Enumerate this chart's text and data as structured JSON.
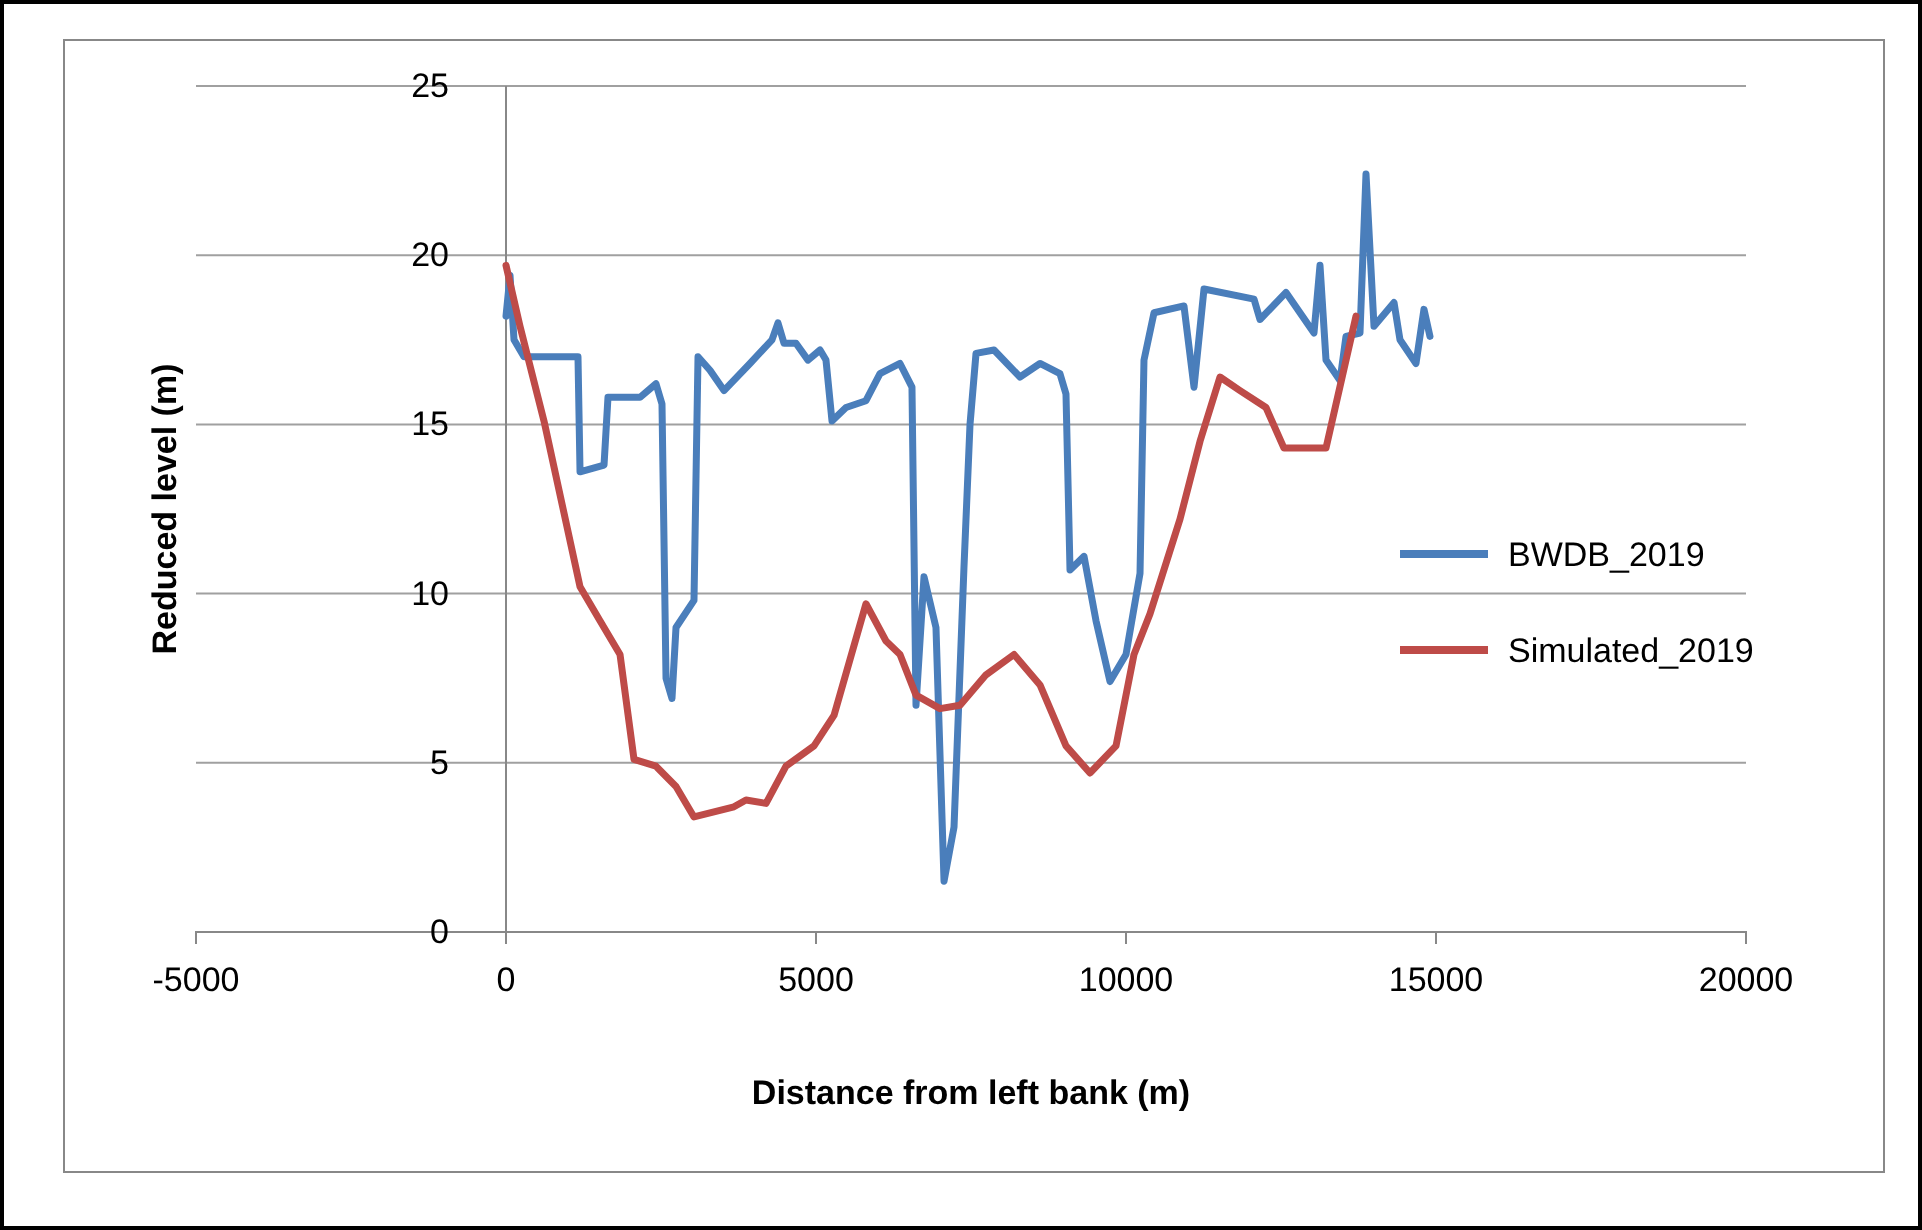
{
  "chart_data": {
    "type": "line",
    "xlabel": "Distance from left bank (m)",
    "ylabel": "Reduced level (m)",
    "xlim": [
      -5000,
      20000
    ],
    "xticks": [
      -5000,
      0,
      5000,
      10000,
      15000,
      20000
    ],
    "ylim": [
      0,
      25
    ],
    "yticks": [
      0,
      5,
      10,
      15,
      20,
      25
    ],
    "grid": "y",
    "legend": "right",
    "marker": "none",
    "line_style": "solid",
    "series": [
      {
        "name": "BWDB_2019",
        "color": "#4a7ebb",
        "x": [
          0,
          65,
          129,
          290,
          871,
          1161,
          1194,
          1581,
          1645,
          2161,
          2419,
          2516,
          2581,
          2677,
          2742,
          3032,
          3097,
          3290,
          3516,
          3935,
          4290,
          4387,
          4484,
          4677,
          4871,
          5065,
          5161,
          5258,
          5484,
          5806,
          6032,
          6355,
          6548,
          6613,
          6742,
          6935,
          7065,
          7226,
          7387,
          7484,
          7581,
          7871,
          8290,
          8613,
          8935,
          9032,
          9097,
          9323,
          9516,
          9742,
          10000,
          10226,
          10290,
          10452,
          10935,
          11097,
          11258,
          12065,
          12161,
          12581,
          13032,
          13129,
          13226,
          13452,
          13548,
          13774,
          13871,
          14000,
          14323,
          14419,
          14677,
          14806,
          14903
        ],
        "values": [
          18.2,
          19.4,
          17.5,
          17.0,
          17.0,
          17.0,
          13.6,
          13.8,
          15.8,
          15.8,
          16.2,
          15.6,
          7.5,
          6.9,
          9.0,
          9.8,
          17.0,
          16.6,
          16.0,
          16.8,
          17.5,
          18.0,
          17.4,
          17.4,
          16.9,
          17.2,
          16.9,
          15.1,
          15.5,
          15.7,
          16.5,
          16.8,
          16.1,
          6.7,
          10.5,
          9.0,
          1.5,
          3.1,
          10.8,
          15.0,
          17.1,
          17.2,
          16.4,
          16.8,
          16.5,
          15.9,
          10.7,
          11.1,
          9.2,
          7.4,
          8.2,
          10.6,
          16.9,
          18.3,
          18.5,
          16.1,
          19.0,
          18.7,
          18.1,
          18.9,
          17.7,
          19.7,
          16.9,
          16.3,
          17.6,
          17.7,
          22.4,
          17.9,
          18.6,
          17.5,
          16.8,
          18.4,
          17.6
        ]
      },
      {
        "name": "Simulated_2019",
        "color": "#be4b48",
        "x": [
          0,
          226,
          613,
          1194,
          1516,
          1839,
          2065,
          2419,
          2742,
          3032,
          3677,
          3871,
          4194,
          4516,
          4968,
          5290,
          5806,
          6129,
          6355,
          6613,
          7000,
          7323,
          7742,
          8194,
          8613,
          9032,
          9419,
          9839,
          10129,
          10387,
          10871,
          11194,
          11516,
          11839,
          12258,
          12548,
          13226,
          13710
        ],
        "values": [
          19.7,
          17.9,
          15.1,
          10.2,
          9.2,
          8.2,
          5.1,
          4.9,
          4.3,
          3.4,
          3.7,
          3.9,
          3.8,
          4.9,
          5.5,
          6.4,
          9.7,
          8.6,
          8.2,
          7.0,
          6.6,
          6.7,
          7.6,
          8.2,
          7.3,
          5.5,
          4.7,
          5.5,
          8.2,
          9.4,
          12.2,
          14.5,
          16.4,
          16.0,
          15.5,
          14.3,
          14.3,
          18.2
        ]
      }
    ]
  }
}
